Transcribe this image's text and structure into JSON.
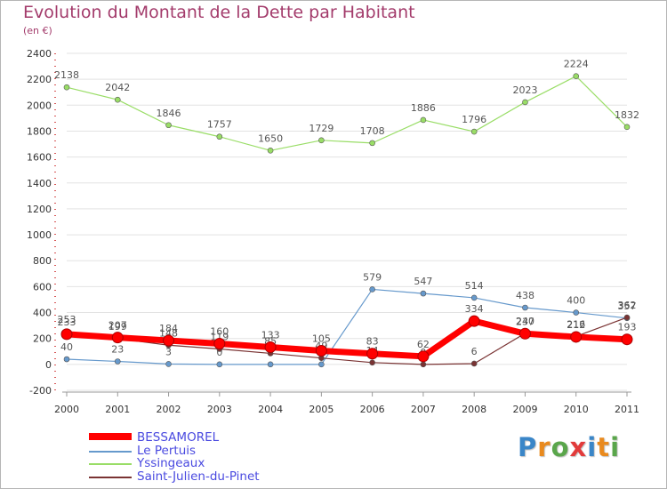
{
  "chart_data": {
    "type": "line",
    "title": "Evolution du Montant de la Dette par Habitant",
    "subtitle": "(en €)",
    "categories": [
      "2000",
      "2001",
      "2002",
      "2003",
      "2004",
      "2005",
      "2006",
      "2007",
      "2008",
      "2009",
      "2010",
      "2011"
    ],
    "ylim": [
      -200,
      2400
    ],
    "yticks": [
      -200,
      0,
      200,
      400,
      600,
      800,
      1000,
      1200,
      1400,
      1600,
      1800,
      2000,
      2200,
      2400
    ],
    "ytick_labels": [
      "-200",
      "0",
      "200",
      "400",
      "600",
      "800",
      "1000",
      "1200",
      "1400",
      "1600",
      "1800",
      "2000",
      "2200",
      "2400"
    ],
    "grid": "horizontal",
    "legend_position": "bottom-left",
    "series": [
      {
        "name": "Yssingeaux",
        "color": "#99dd66",
        "values": [
          2138,
          2042,
          1846,
          1757,
          1650,
          1729,
          1708,
          1886,
          1796,
          2023,
          2224,
          1832
        ]
      },
      {
        "name": "Le Pertuis",
        "color": "#6699cc",
        "values": [
          40,
          23,
          3,
          0,
          0,
          0,
          579,
          547,
          514,
          438,
          400,
          357
        ]
      },
      {
        "name": "Saint-Julien-du-Pinet",
        "color": "#7a3333",
        "values": [
          253,
          199,
          148,
          119,
          85,
          49,
          14,
          0,
          6,
          240,
          216,
          362
        ]
      },
      {
        "name": "BESSAMOREL",
        "color": "#ff0000",
        "values": [
          233,
          207,
          184,
          160,
          133,
          105,
          83,
          62,
          334,
          237,
          212,
          193
        ]
      }
    ]
  },
  "legend": {
    "items": [
      {
        "label": "BESSAMOREL",
        "color": "#ff0000"
      },
      {
        "label": "Le Pertuis",
        "color": "#6699cc"
      },
      {
        "label": "Yssingeaux",
        "color": "#99dd66"
      },
      {
        "label": "Saint-Julien-du-Pinet",
        "color": "#7a3333"
      }
    ]
  },
  "brand": {
    "letters": [
      "P",
      "r",
      "o",
      "x",
      "i",
      "t",
      "i"
    ],
    "colors": [
      "#3a86c8",
      "#e98a1e",
      "#5aa64b",
      "#e23b3b",
      "#3a86c8",
      "#e98a1e",
      "#5aa64b"
    ]
  }
}
